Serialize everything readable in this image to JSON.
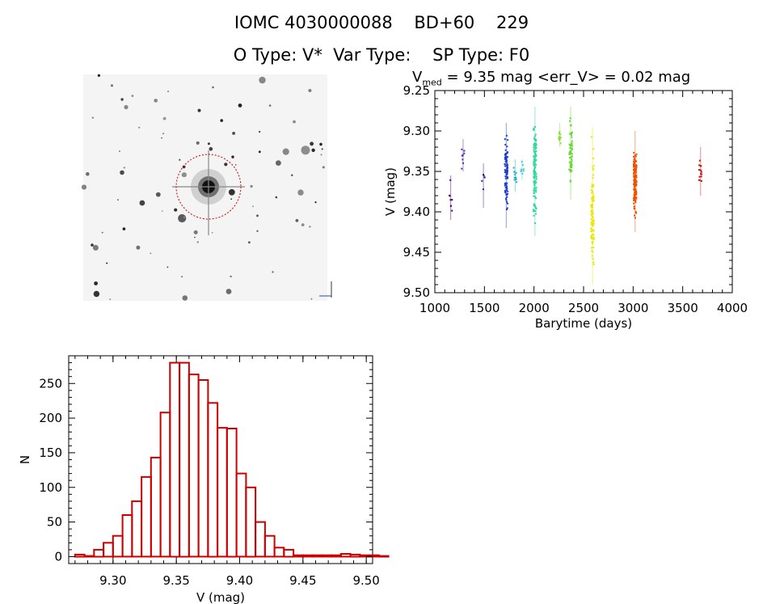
{
  "header": {
    "line1": "IOMC 4030000088    BD+60    229",
    "line2": "O Type: V*  Var Type:    SP Type: F0"
  },
  "stats": {
    "v_prefix": "V",
    "v_sub": "med",
    "v_text": " = 9.35 mag <err_V> = 0.02 mag"
  },
  "finder": {
    "circle_color": "#cc0000"
  },
  "chart_data": [
    {
      "type": "scatter",
      "xlabel": "Barytime (days)",
      "ylabel": "V (mag)",
      "xlim": [
        1000,
        4000
      ],
      "ylim": [
        9.5,
        9.25
      ],
      "y_inverted": true,
      "xticks": [
        1000,
        1500,
        2000,
        2500,
        3000,
        3500,
        4000
      ],
      "yticks": [
        9.25,
        9.3,
        9.35,
        9.4,
        9.45,
        9.5
      ],
      "ytick_labels": [
        "9.25",
        "9.30",
        "9.35",
        "9.40",
        "9.45",
        "9.50"
      ],
      "color_by_time": "rainbow (purple → red)",
      "groups": [
        {
          "x": 1160,
          "ymin": 9.355,
          "ymax": 9.41,
          "count": 8,
          "color": "#4b0082"
        },
        {
          "x": 1285,
          "ymin": 9.31,
          "ymax": 9.35,
          "count": 9,
          "color": "#5a2aa0"
        },
        {
          "x": 1490,
          "ymin": 9.34,
          "ymax": 9.395,
          "count": 6,
          "color": "#2222aa"
        },
        {
          "x": 1720,
          "ymin": 9.29,
          "ymax": 9.42,
          "count": 80,
          "color": "#1a3ccc"
        },
        {
          "x": 1810,
          "ymin": 9.335,
          "ymax": 9.375,
          "count": 12,
          "color": "#20b0c0"
        },
        {
          "x": 1880,
          "ymin": 9.335,
          "ymax": 9.36,
          "count": 8,
          "color": "#40d0d0"
        },
        {
          "x": 2010,
          "ymin": 9.27,
          "ymax": 9.43,
          "count": 110,
          "color": "#2ed89a"
        },
        {
          "x": 2260,
          "ymin": 9.29,
          "ymax": 9.32,
          "count": 12,
          "color": "#88e030"
        },
        {
          "x": 2370,
          "ymin": 9.27,
          "ymax": 9.385,
          "count": 60,
          "color": "#66d830"
        },
        {
          "x": 2590,
          "ymin": 9.295,
          "ymax": 9.49,
          "count": 90,
          "color": "#e8e800"
        },
        {
          "x": 3020,
          "ymin": 9.3,
          "ymax": 9.425,
          "count": 150,
          "color": "#f05000"
        },
        {
          "x": 3680,
          "ymin": 9.32,
          "ymax": 9.38,
          "count": 14,
          "color": "#c81818"
        }
      ]
    },
    {
      "type": "bar",
      "subtype": "histogram",
      "xlabel": "V (mag)",
      "ylabel": "N",
      "xlim": [
        9.265,
        9.505
      ],
      "ylim": [
        -10,
        290
      ],
      "xticks": [
        9.3,
        9.35,
        9.4,
        9.45,
        9.5
      ],
      "xtick_labels": [
        "9.30",
        "9.35",
        "9.40",
        "9.45",
        "9.50"
      ],
      "yticks": [
        0,
        50,
        100,
        150,
        200,
        250
      ],
      "bin_width": 0.0075,
      "bin_start": 9.27,
      "values": [
        3,
        1,
        10,
        20,
        30,
        60,
        80,
        115,
        143,
        208,
        280,
        280,
        263,
        255,
        222,
        186,
        185,
        120,
        100,
        50,
        30,
        13,
        10,
        2,
        2,
        2,
        2,
        2,
        4,
        3,
        2,
        2,
        1
      ],
      "color": "#cc0000"
    }
  ]
}
